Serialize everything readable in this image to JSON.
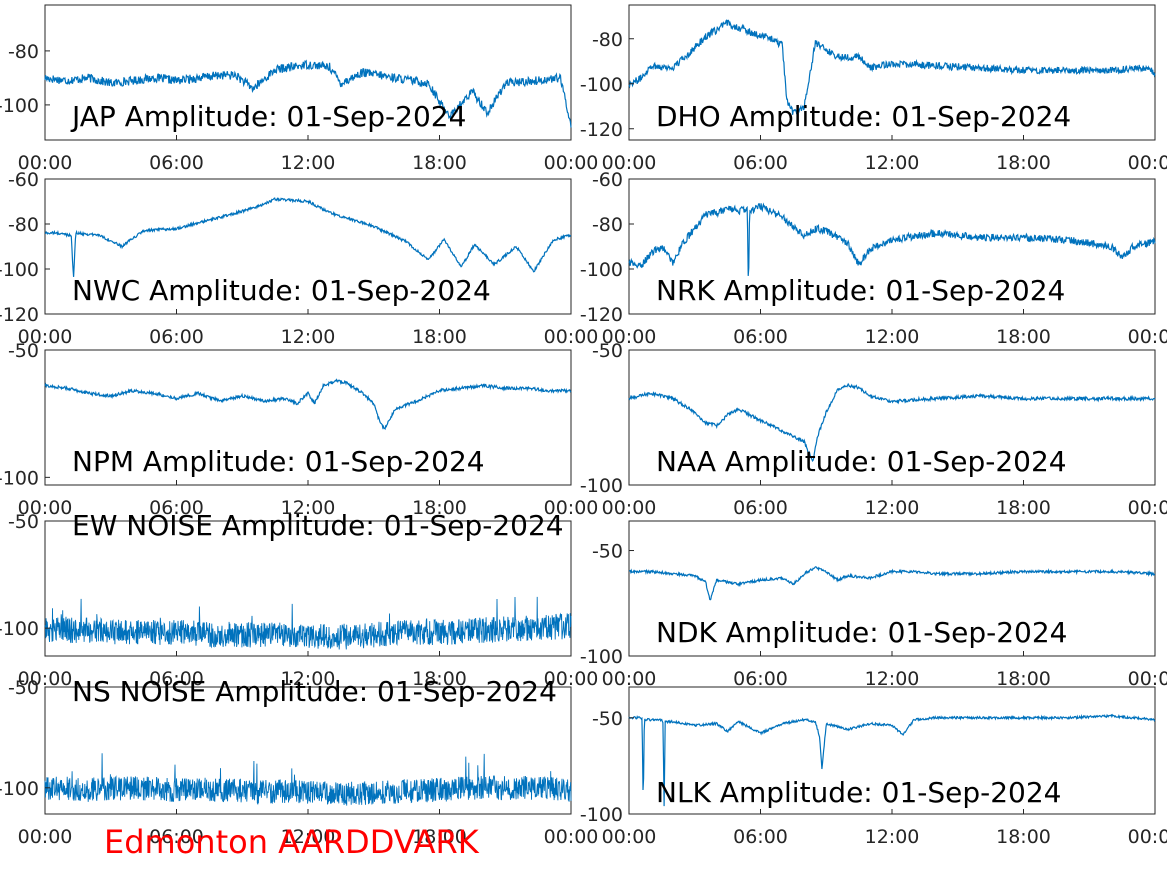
{
  "footer_label": "Edmonton AARDDVARK",
  "colors": {
    "trace": "#0072BD",
    "footer": "#FF0000",
    "axes": "#262626"
  },
  "chart_data": [
    {
      "type": "line",
      "title": "JAP Amplitude: 01-Sep-2024",
      "xticks": [
        "00:00",
        "06:00",
        "12:00",
        "18:00",
        "00:00"
      ],
      "xlim_hours": [
        0,
        24
      ],
      "ylim": [
        -113,
        -63
      ],
      "yticks": [
        -80,
        -100
      ],
      "ytick_labels": [
        "-80",
        "-100"
      ],
      "band": "mid",
      "series": [
        {
          "x_hours": [
            0,
            1,
            2,
            3,
            4,
            5,
            6,
            7,
            8,
            8.7,
            9.5,
            10.5,
            12,
            13,
            13.5,
            14.5,
            16,
            17.5,
            18,
            18.5,
            19.5,
            20.2,
            21,
            22.5,
            23.5,
            23.8,
            24
          ],
          "y": [
            -90,
            -91,
            -90,
            -92,
            -91,
            -90,
            -91,
            -90,
            -89,
            -89,
            -94,
            -87,
            -85,
            -86,
            -92,
            -88,
            -90,
            -92,
            -99,
            -104,
            -95,
            -103,
            -92,
            -91,
            -90,
            -100,
            -108
          ]
        }
      ]
    },
    {
      "type": "line",
      "title": "DHO Amplitude: 01-Sep-2024",
      "xticks": [
        "00:00",
        "06:00",
        "12:00",
        "18:00",
        "00:00"
      ],
      "xlim_hours": [
        0,
        24
      ],
      "ylim": [
        -125,
        -65
      ],
      "yticks": [
        -80,
        -100,
        -120
      ],
      "ytick_labels": [
        "-80",
        "-100",
        "-120"
      ],
      "band": "mid",
      "series": [
        {
          "x_hours": [
            0,
            0.5,
            1,
            2,
            3,
            3.5,
            4.5,
            5.5,
            6.5,
            7,
            7.2,
            7.5,
            8,
            8.5,
            9.5,
            10.5,
            11,
            12,
            14,
            16,
            18,
            20,
            22,
            23.5,
            24
          ],
          "y": [
            -100,
            -98,
            -92,
            -93,
            -84,
            -79,
            -73,
            -77,
            -80,
            -83,
            -108,
            -113,
            -110,
            -82,
            -88,
            -88,
            -93,
            -91,
            -92,
            -93,
            -94,
            -94,
            -94,
            -93,
            -95
          ]
        }
      ]
    },
    {
      "type": "line",
      "title": "NWC Amplitude: 01-Sep-2024",
      "xticks": [
        "00:00",
        "06:00",
        "12:00",
        "18:00",
        "00:00"
      ],
      "xlim_hours": [
        0,
        24
      ],
      "ylim": [
        -120,
        -60
      ],
      "yticks": [
        -60,
        -80,
        -100,
        -120
      ],
      "ytick_labels": [
        "-60",
        "-80",
        "-100",
        "-120"
      ],
      "band": "thin",
      "series": [
        {
          "x_hours": [
            0,
            0.5,
            1.2,
            1.3,
            1.4,
            2.5,
            3.5,
            4.5,
            6,
            8,
            9.5,
            10.5,
            12,
            13,
            15,
            16.5,
            17.5,
            18.2,
            19,
            19.6,
            20.5,
            21.5,
            22.3,
            23.2,
            24
          ],
          "y": [
            -84,
            -84,
            -85,
            -105,
            -84,
            -85,
            -90,
            -83,
            -82,
            -77,
            -73,
            -69,
            -70,
            -75,
            -81,
            -88,
            -96,
            -87,
            -99,
            -89,
            -98,
            -90,
            -101,
            -87,
            -85
          ]
        }
      ]
    },
    {
      "type": "line",
      "title": "NRK Amplitude: 01-Sep-2024",
      "xticks": [
        "00:00",
        "06:00",
        "12:00",
        "18:00",
        "00:00"
      ],
      "xlim_hours": [
        0,
        24
      ],
      "ylim": [
        -120,
        -60
      ],
      "yticks": [
        -60,
        -80,
        -100,
        -120
      ],
      "ytick_labels": [
        "-60",
        "-80",
        "-100",
        "-120"
      ],
      "band": "mid",
      "series": [
        {
          "x_hours": [
            0,
            0.5,
            1,
            1.5,
            2,
            2.5,
            3,
            3.5,
            4,
            4.5,
            5,
            5.4,
            5.45,
            5.5,
            6,
            7,
            8,
            8.5,
            9,
            10,
            10.5,
            11,
            12,
            14,
            16,
            18,
            20,
            22,
            22.5,
            23,
            24
          ],
          "y": [
            -97,
            -99,
            -93,
            -90,
            -97,
            -88,
            -82,
            -76,
            -75,
            -73,
            -74,
            -74,
            -110,
            -74,
            -72,
            -77,
            -85,
            -82,
            -83,
            -89,
            -98,
            -91,
            -87,
            -84,
            -86,
            -86,
            -87,
            -90,
            -95,
            -90,
            -88
          ]
        }
      ]
    },
    {
      "type": "line",
      "title": "NPM Amplitude: 01-Sep-2024",
      "xticks": [
        "00:00",
        "06:00",
        "12:00",
        "18:00",
        "00:00"
      ],
      "xlim_hours": [
        0,
        24
      ],
      "ylim": [
        -103,
        -50
      ],
      "yticks": [
        -50,
        -100
      ],
      "ytick_labels": [
        "-50",
        "-100"
      ],
      "band": "thin",
      "series": [
        {
          "x_hours": [
            0,
            1,
            2,
            3,
            4,
            5,
            6,
            7,
            8,
            9,
            10,
            11,
            11.5,
            12,
            12.3,
            12.7,
            13.3,
            13.8,
            14.5,
            15,
            15.3,
            15.5,
            16,
            17,
            18,
            19,
            20,
            21,
            22,
            23,
            24
          ],
          "y": [
            -64,
            -65,
            -67,
            -68,
            -66,
            -67,
            -69,
            -67,
            -70,
            -68,
            -70,
            -69,
            -71,
            -67,
            -71,
            -64,
            -62,
            -63,
            -67,
            -71,
            -79,
            -81,
            -73,
            -70,
            -66,
            -65,
            -64,
            -65,
            -65,
            -66,
            -66
          ]
        }
      ]
    },
    {
      "type": "line",
      "title": "NAA Amplitude: 01-Sep-2024",
      "xticks": [
        "00:00",
        "06:00",
        "12:00",
        "18:00",
        "00:00"
      ],
      "xlim_hours": [
        0,
        24
      ],
      "ylim": [
        -100,
        -50
      ],
      "yticks": [
        -50,
        -100
      ],
      "ytick_labels": [
        "-50",
        "-100"
      ],
      "band": "thin",
      "series": [
        {
          "x_hours": [
            0,
            1,
            2,
            3,
            3.5,
            4,
            4.5,
            5,
            6,
            7,
            7.5,
            8,
            8.2,
            8.4,
            8.6,
            9,
            9.5,
            10,
            10.5,
            11,
            11.5,
            12,
            14,
            16,
            18,
            20,
            22,
            24
          ],
          "y": [
            -68,
            -66,
            -68,
            -73,
            -77,
            -78,
            -74,
            -72,
            -76,
            -80,
            -82,
            -84,
            -88,
            -91,
            -82,
            -73,
            -65,
            -63,
            -64,
            -67,
            -68,
            -69,
            -68,
            -67,
            -68,
            -68,
            -68,
            -68
          ]
        }
      ]
    },
    {
      "type": "line",
      "title": "EW NOISE Amplitude: 01-Sep-2024",
      "xticks": [
        "00:00",
        "06:00",
        "12:00",
        "18:00",
        "00:00"
      ],
      "xlim_hours": [
        0,
        24
      ],
      "ylim": [
        -113,
        -50
      ],
      "yticks": [
        -50,
        -100
      ],
      "ytick_labels": [
        "-50",
        "-100"
      ],
      "band": "noise",
      "series": [
        {
          "x_hours": [
            0,
            2,
            4,
            6,
            8,
            10,
            12,
            14,
            16,
            18,
            20,
            22,
            24
          ],
          "y": [
            -101,
            -101,
            -102,
            -102,
            -103,
            -103,
            -104,
            -104,
            -102,
            -102,
            -101,
            -100,
            -99
          ]
        }
      ]
    },
    {
      "type": "line",
      "title": "NDK Amplitude: 01-Sep-2024",
      "xticks": [
        "00:00",
        "06:00",
        "12:00",
        "18:00",
        "00:00"
      ],
      "xlim_hours": [
        0,
        24
      ],
      "ylim": [
        -100,
        -36
      ],
      "yticks": [
        -50,
        -100
      ],
      "ytick_labels": [
        "-50",
        "-100"
      ],
      "band": "thin",
      "series": [
        {
          "x_hours": [
            0,
            1,
            2,
            3,
            3.5,
            3.7,
            4,
            5,
            6,
            7,
            7.5,
            8,
            8.5,
            9,
            9.5,
            10,
            11,
            12,
            13,
            14,
            16,
            18,
            20,
            22,
            24
          ],
          "y": [
            -60,
            -60,
            -61,
            -62,
            -65,
            -74,
            -64,
            -66,
            -64,
            -63,
            -66,
            -61,
            -58,
            -60,
            -64,
            -62,
            -63,
            -60,
            -60,
            -61,
            -61,
            -60,
            -60,
            -60,
            -61
          ]
        }
      ]
    },
    {
      "type": "line",
      "title": "NS NOISE Amplitude: 01-Sep-2024",
      "xticks": [
        "00:00",
        "06:00",
        "12:00",
        "18:00",
        "00:00"
      ],
      "xlim_hours": [
        0,
        24
      ],
      "ylim": [
        -113,
        -50
      ],
      "yticks": [
        -50,
        -100
      ],
      "ytick_labels": [
        "-50",
        "-100"
      ],
      "band": "noise",
      "series": [
        {
          "x_hours": [
            0,
            2,
            4,
            6,
            8,
            10,
            12,
            14,
            16,
            18,
            20,
            22,
            24
          ],
          "y": [
            -100,
            -101,
            -100,
            -101,
            -101,
            -102,
            -102,
            -103,
            -102,
            -101,
            -100,
            -100,
            -101
          ]
        }
      ]
    },
    {
      "type": "line",
      "title": "NLK Amplitude: 01-Sep-2024",
      "xticks": [
        "00:00",
        "06:00",
        "12:00",
        "18:00",
        "00:00"
      ],
      "xlim_hours": [
        0,
        24
      ],
      "ylim": [
        -100,
        -34
      ],
      "yticks": [
        -50,
        -100
      ],
      "ytick_labels": [
        "-50",
        "-100"
      ],
      "band": "thin",
      "series": [
        {
          "x_hours": [
            0,
            0.5,
            0.6,
            0.65,
            0.7,
            1.5,
            1.55,
            1.6,
            1.65,
            2,
            3,
            4,
            4.5,
            5,
            6,
            7,
            8,
            8.5,
            8.7,
            8.8,
            9,
            10,
            11,
            12,
            12.5,
            13,
            14,
            16,
            18,
            20,
            22,
            23,
            24
          ],
          "y": [
            -50,
            -50,
            -51,
            -96,
            -51,
            -51,
            -52,
            -96,
            -52,
            -52,
            -54,
            -53,
            -57,
            -52,
            -58,
            -53,
            -51,
            -52,
            -60,
            -77,
            -53,
            -56,
            -53,
            -54,
            -59,
            -51,
            -50,
            -50,
            -50,
            -50,
            -49,
            -50,
            -51
          ]
        }
      ]
    }
  ]
}
